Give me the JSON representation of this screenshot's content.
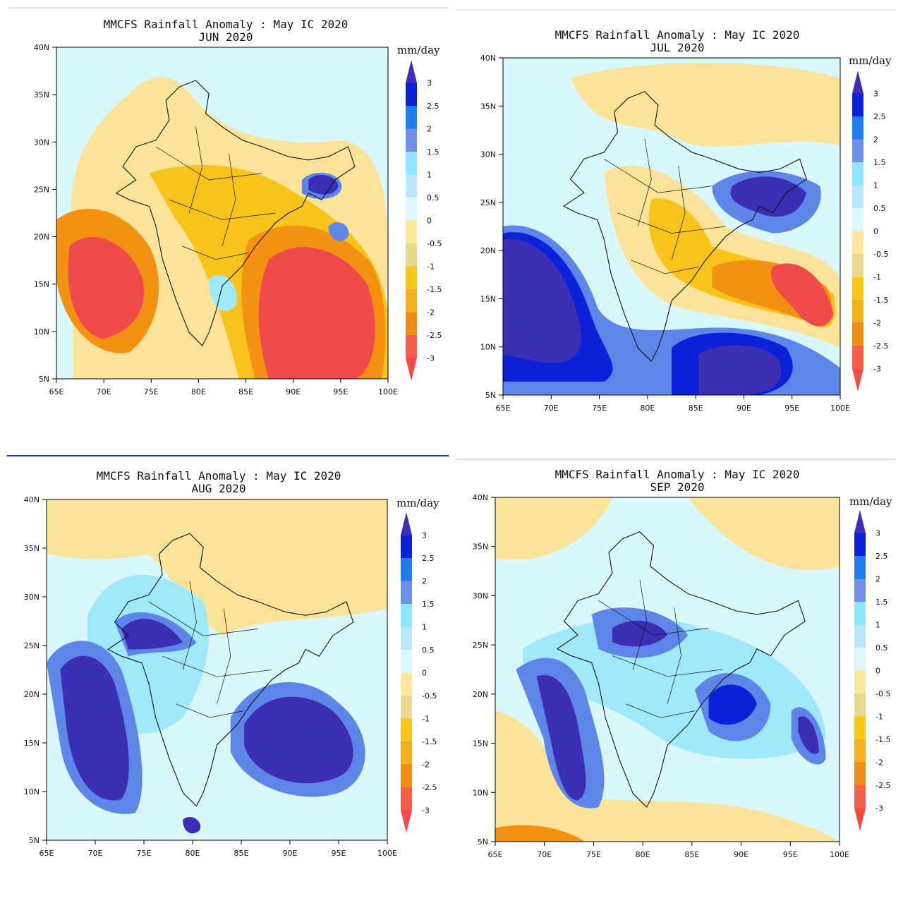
{
  "figure": {
    "panels": [
      {
        "title": "MMCFS Rainfall Anomaly : May IC 2020",
        "month": "JUN 2020"
      },
      {
        "title": "MMCFS Rainfall Anomaly : May IC 2020",
        "month": "JUL 2020"
      },
      {
        "title": "MMCFS Rainfall Anomaly : May IC 2020",
        "month": "AUG 2020"
      },
      {
        "title": "MMCFS Rainfall Anomaly : May IC 2020",
        "month": "SEP 2020"
      }
    ],
    "unit": "mm/day",
    "lat_ticks": [
      "5N",
      "10N",
      "15N",
      "20N",
      "25N",
      "30N",
      "35N",
      "40N"
    ],
    "lon_ticks": [
      "65E",
      "70E",
      "75E",
      "80E",
      "85E",
      "90E",
      "95E",
      "100E"
    ],
    "legend_labels": [
      "3",
      "2.5",
      "2",
      "1.5",
      "1",
      "0.5",
      "0",
      "-0.5",
      "-1",
      "-1.5",
      "-2",
      "-2.5",
      "-3"
    ],
    "legend_colors": [
      "#3f2fb8",
      "#0b22d8",
      "#1f7ef0",
      "#6f8fe8",
      "#8fe6ff",
      "#b9e6fb",
      "#dcf8fd",
      "#fbe69c",
      "#ead88f",
      "#f7c81a",
      "#f5b021",
      "#ef8d14",
      "#f6604a",
      "#f54a47"
    ],
    "palette": {
      "background": "#d9f8fd",
      "dry_light": "#fbe39a",
      "dry_mid": "#f8c41c",
      "dry_strong": "#f39212",
      "dry_extreme": "#f14a4a",
      "wet_light": "#9fe9fb",
      "wet_mid": "#5e86e8",
      "wet_strong": "#0b22d8",
      "wet_extreme": "#3b2db4"
    },
    "dividers": [
      "#d9e6f2",
      "#e6ecef",
      "#1036d6",
      "#d9e6f2"
    ]
  }
}
